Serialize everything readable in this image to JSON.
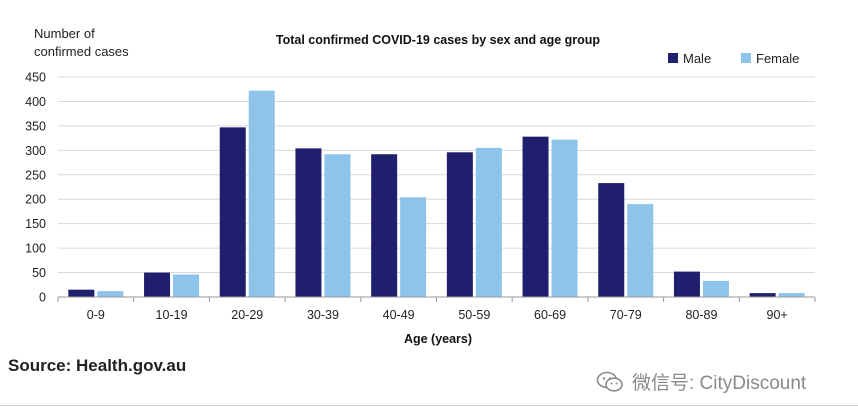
{
  "chart_data": {
    "type": "bar",
    "title": "Total confirmed COVID-19 cases by sex and age group",
    "ylabel": [
      "Number of",
      "confirmed cases"
    ],
    "xlabel": "Age (years)",
    "categories": [
      "0-9",
      "10-19",
      "20-29",
      "30-39",
      "40-49",
      "50-59",
      "60-69",
      "70-79",
      "80-89",
      "90+"
    ],
    "series": [
      {
        "name": "Male",
        "color": "#1f1f6e",
        "values": [
          15,
          50,
          347,
          304,
          292,
          296,
          328,
          233,
          52,
          8
        ]
      },
      {
        "name": "Female",
        "color": "#8ec3ea",
        "values": [
          12,
          46,
          422,
          292,
          204,
          305,
          322,
          190,
          33,
          8
        ]
      }
    ],
    "ylim": [
      0,
      450
    ],
    "yticks": [
      0,
      50,
      100,
      150,
      200,
      250,
      300,
      350,
      400,
      450
    ],
    "grid": true,
    "legend": "top-right"
  },
  "source": "Source: Health.gov.au",
  "watermark": "微信号: CityDiscount",
  "watermark_icon": "wechat-icon"
}
